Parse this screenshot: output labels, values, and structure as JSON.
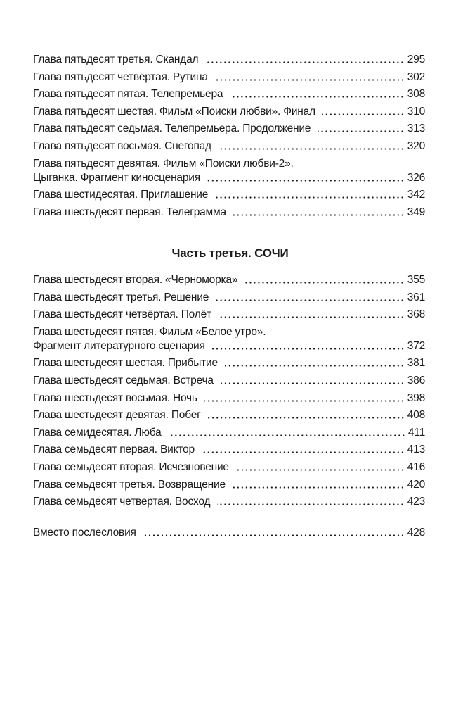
{
  "part_two_entries": [
    {
      "lines": [
        "Глава пятьдесят третья. Скандал"
      ],
      "page": "295"
    },
    {
      "lines": [
        "Глава пятьдесят четвёртая. Рутина"
      ],
      "page": "302"
    },
    {
      "lines": [
        "Глава пятьдесят пятая. Телепремьера"
      ],
      "page": "308"
    },
    {
      "lines": [
        "Глава пятьдесят шестая. Фильм «Поиски любви». Финал"
      ],
      "page": "310"
    },
    {
      "lines": [
        "Глава пятьдесят седьмая. Телепремьера. Продолжение"
      ],
      "page": "313"
    },
    {
      "lines": [
        "Глава пятьдесят восьмая. Снегопад"
      ],
      "page": "320"
    },
    {
      "lines": [
        "Глава пятьдесят девятая. Фильм «Поиски любви-2».",
        "Цыганка. Фрагмент киносценария"
      ],
      "page": "326"
    },
    {
      "lines": [
        "Глава шестидесятая. Приглашение"
      ],
      "page": "342"
    },
    {
      "lines": [
        "Глава шестьдесят первая. Телеграмма"
      ],
      "page": "349"
    }
  ],
  "part_three": {
    "heading": "Часть третья. СОЧИ",
    "entries": [
      {
        "lines": [
          "Глава шестьдесят вторая. «Черноморка»"
        ],
        "page": "355"
      },
      {
        "lines": [
          "Глава шестьдесят третья. Решение"
        ],
        "page": "361"
      },
      {
        "lines": [
          "Глава шестьдесят четвёртая. Полёт"
        ],
        "page": "368"
      },
      {
        "lines": [
          "Глава шестьдесят пятая. Фильм «Белое утро».",
          "Фрагмент литературного сценария"
        ],
        "page": "372"
      },
      {
        "lines": [
          "Глава шестьдесят шестая. Прибытие"
        ],
        "page": "381"
      },
      {
        "lines": [
          "Глава шестьдесят седьмая. Встреча"
        ],
        "page": "386"
      },
      {
        "lines": [
          "Глава шестьдесят восьмая. Ночь"
        ],
        "page": "398"
      },
      {
        "lines": [
          "Глава шестьдесят девятая. Побег"
        ],
        "page": "408"
      },
      {
        "lines": [
          "Глава семидесятая. Люба"
        ],
        "page": "411"
      },
      {
        "lines": [
          "Глава семьдесят первая. Виктор"
        ],
        "page": "413"
      },
      {
        "lines": [
          "Глава семьдесят вторая. Исчезновение"
        ],
        "page": "416"
      },
      {
        "lines": [
          "Глава семьдесят третья. Возвращение"
        ],
        "page": "420"
      },
      {
        "lines": [
          "Глава семьдесят четвертая. Восход"
        ],
        "page": "423"
      }
    ]
  },
  "afterword": {
    "lines": [
      "Вместо послесловия"
    ],
    "page": "428"
  }
}
